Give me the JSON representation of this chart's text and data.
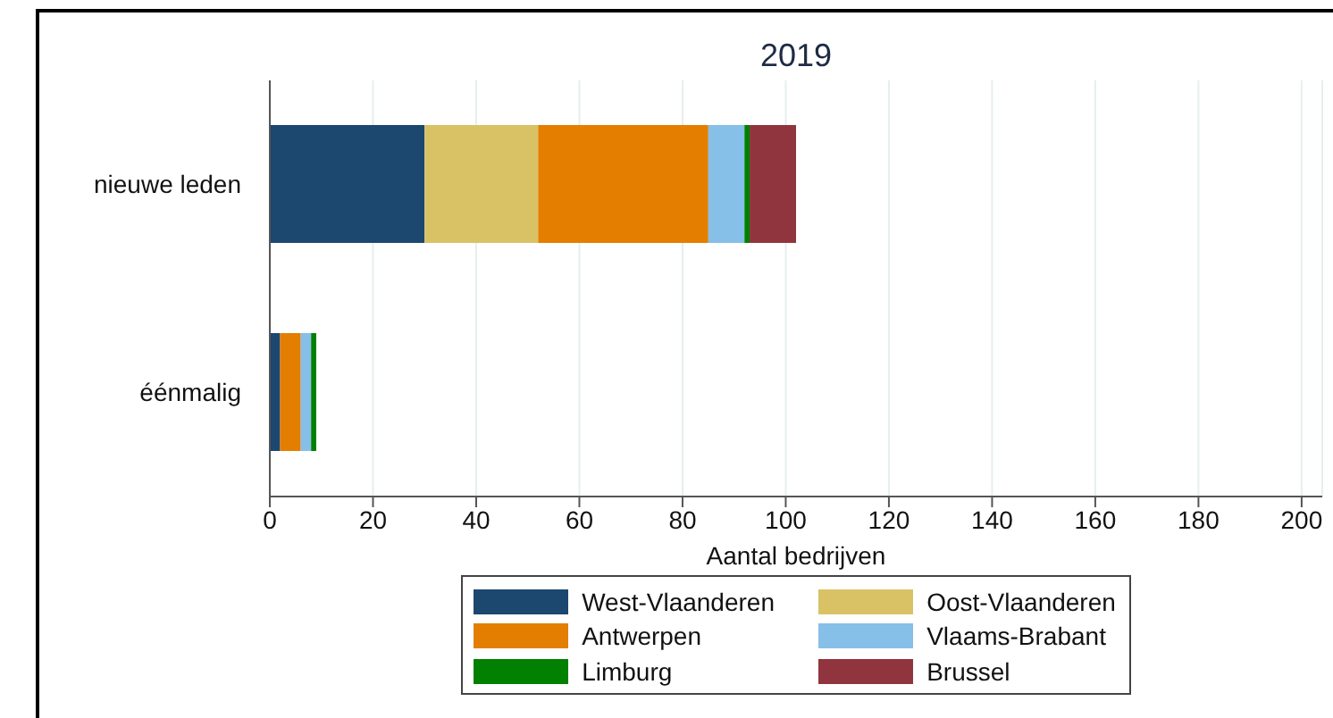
{
  "chart_data": {
    "type": "bar",
    "orientation": "horizontal",
    "stacked": true,
    "title": "2019",
    "xlabel": "Aantal bedrijven",
    "categories": [
      "nieuwe leden",
      "éénmalig"
    ],
    "series": [
      {
        "name": "West-Vlaanderen",
        "color": "#1c476f",
        "values": [
          30,
          2
        ]
      },
      {
        "name": "Oost-Vlaanderen",
        "color": "#d9c265",
        "values": [
          22,
          0
        ]
      },
      {
        "name": "Antwerpen",
        "color": "#e37e00",
        "values": [
          33,
          4
        ]
      },
      {
        "name": "Vlaams-Brabant",
        "color": "#86bfe8",
        "values": [
          7,
          2
        ]
      },
      {
        "name": "Limburg",
        "color": "#018001",
        "values": [
          1,
          1
        ]
      },
      {
        "name": "Brussel",
        "color": "#90353e",
        "values": [
          9,
          0
        ]
      }
    ],
    "xlim": [
      0,
      204
    ],
    "xticks": [
      0,
      20,
      40,
      60,
      80,
      100,
      120,
      140,
      160,
      180,
      200
    ],
    "grid": "x",
    "legend": "bottom"
  }
}
